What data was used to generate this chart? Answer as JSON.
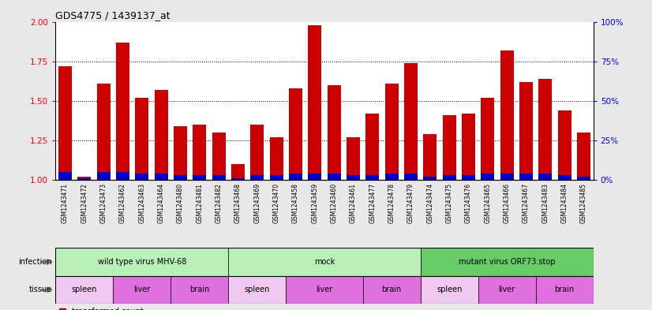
{
  "title": "GDS4775 / 1439137_at",
  "samples": [
    "GSM1243471",
    "GSM1243472",
    "GSM1243473",
    "GSM1243462",
    "GSM1243463",
    "GSM1243464",
    "GSM1243480",
    "GSM1243481",
    "GSM1243482",
    "GSM1243468",
    "GSM1243469",
    "GSM1243470",
    "GSM1243458",
    "GSM1243459",
    "GSM1243460",
    "GSM1243461",
    "GSM1243477",
    "GSM1243478",
    "GSM1243479",
    "GSM1243474",
    "GSM1243475",
    "GSM1243476",
    "GSM1243465",
    "GSM1243466",
    "GSM1243467",
    "GSM1243483",
    "GSM1243484",
    "GSM1243485"
  ],
  "transformed_count": [
    1.72,
    1.02,
    1.61,
    1.87,
    1.52,
    1.57,
    1.34,
    1.35,
    1.3,
    1.1,
    1.35,
    1.27,
    1.58,
    1.98,
    1.6,
    1.27,
    1.42,
    1.61,
    1.74,
    1.29,
    1.41,
    1.42,
    1.52,
    1.82,
    1.62,
    1.64,
    1.44,
    1.3
  ],
  "percentile": [
    5,
    1,
    5,
    5,
    4,
    4,
    3,
    3,
    3,
    1,
    3,
    3,
    4,
    4,
    4,
    3,
    3,
    4,
    4,
    2,
    3,
    3,
    4,
    4,
    4,
    4,
    3,
    2
  ],
  "infection_groups": [
    {
      "label": "wild type virus MHV-68",
      "start": 0,
      "end": 9,
      "color": "#b8f0b8"
    },
    {
      "label": "mock",
      "start": 9,
      "end": 19,
      "color": "#b8f0b8"
    },
    {
      "label": "mutant virus ORF73.stop",
      "start": 19,
      "end": 28,
      "color": "#66cc66"
    }
  ],
  "tissue_spleen_color": "#f0c8f0",
  "tissue_liver_color": "#e070e0",
  "tissue_brain_color": "#e070e0",
  "tissue_groups": [
    {
      "label": "spleen",
      "start": 0,
      "end": 3,
      "type": "spleen"
    },
    {
      "label": "liver",
      "start": 3,
      "end": 6,
      "type": "liver"
    },
    {
      "label": "brain",
      "start": 6,
      "end": 9,
      "type": "brain"
    },
    {
      "label": "spleen",
      "start": 9,
      "end": 12,
      "type": "spleen"
    },
    {
      "label": "liver",
      "start": 12,
      "end": 16,
      "type": "liver"
    },
    {
      "label": "brain",
      "start": 16,
      "end": 19,
      "type": "brain"
    },
    {
      "label": "spleen",
      "start": 19,
      "end": 22,
      "type": "spleen"
    },
    {
      "label": "liver",
      "start": 22,
      "end": 25,
      "type": "liver"
    },
    {
      "label": "brain",
      "start": 25,
      "end": 28,
      "type": "brain"
    }
  ],
  "bar_color": "#cc0000",
  "percentile_color": "#0000cc",
  "ylim_left": [
    1.0,
    2.0
  ],
  "ylim_right": [
    0,
    100
  ],
  "yticks_left": [
    1.0,
    1.25,
    1.5,
    1.75,
    2.0
  ],
  "yticks_right": [
    0,
    25,
    50,
    75,
    100
  ],
  "background_color": "#e8e8e8",
  "plot_bg": "#ffffff",
  "xtick_bg": "#d0d0d0"
}
